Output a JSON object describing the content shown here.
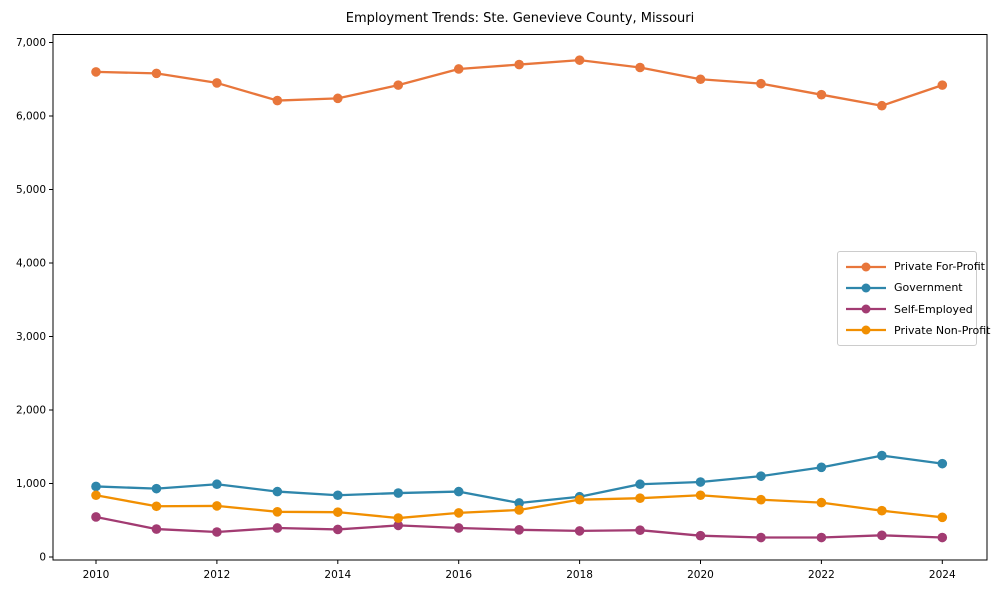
{
  "chart_data": {
    "type": "line",
    "title": "Employment Trends: Ste. Genevieve County, Missouri",
    "xlabel": "",
    "ylabel": "",
    "grid": false,
    "legend_position": "center right",
    "x": [
      2010,
      2011,
      2012,
      2013,
      2014,
      2015,
      2016,
      2017,
      2018,
      2019,
      2020,
      2021,
      2022,
      2023,
      2024
    ],
    "series": [
      {
        "name": "Private For-Profit",
        "color": "#E8763B",
        "values": [
          6600,
          6580,
          6450,
          6210,
          6240,
          6420,
          6640,
          6700,
          6760,
          6660,
          6500,
          6440,
          6290,
          6140,
          6420
        ]
      },
      {
        "name": "Government",
        "color": "#2E86AB",
        "values": [
          960,
          930,
          990,
          890,
          840,
          870,
          890,
          735,
          820,
          990,
          1020,
          1100,
          1220,
          1380,
          1270
        ]
      },
      {
        "name": "Self-Employed",
        "color": "#A23B72",
        "values": [
          545,
          380,
          340,
          395,
          375,
          430,
          395,
          370,
          355,
          365,
          290,
          265,
          265,
          295,
          265
        ]
      },
      {
        "name": "Private Non-Profit",
        "color": "#F18F01",
        "values": [
          840,
          690,
          695,
          615,
          610,
          530,
          600,
          640,
          780,
          800,
          840,
          780,
          740,
          630,
          540
        ]
      }
    ],
    "xticks": [
      "2010",
      "2012",
      "2014",
      "2016",
      "2018",
      "2020",
      "2022",
      "2024"
    ],
    "yticks": [
      "0",
      "1,000",
      "2,000",
      "3,000",
      "4,000",
      "5,000",
      "6,000",
      "7,000"
    ],
    "ytick_values": [
      0,
      1000,
      2000,
      3000,
      4000,
      5000,
      6000,
      7000
    ],
    "xtick_values": [
      2010,
      2012,
      2014,
      2016,
      2018,
      2020,
      2022,
      2024
    ],
    "ylim": [
      0,
      7150
    ],
    "xlim": [
      2009.3,
      2024.7
    ]
  }
}
